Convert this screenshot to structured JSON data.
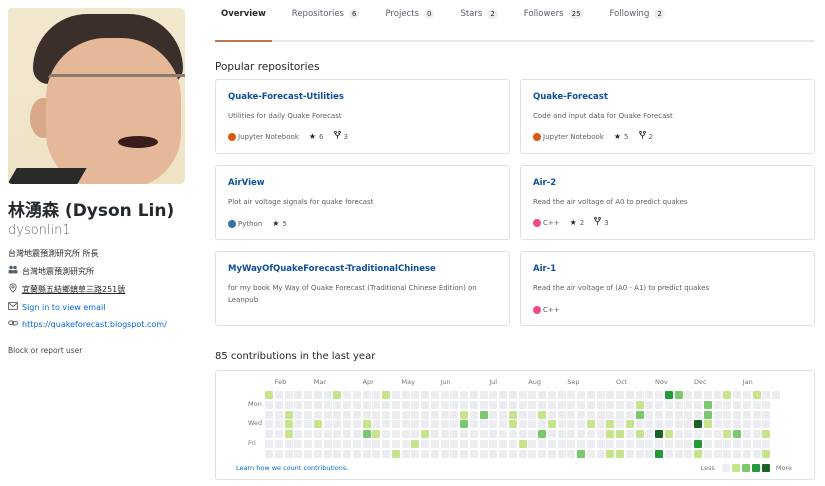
{
  "profile": {
    "full_name": "林湧森 (Dyson Lin)",
    "username": "dysonlin1",
    "bio": "台灣地震預測研究所 所長",
    "organization": "台灣地震預測研究所",
    "location": "宜蘭縣五結鄉鎮草三路251號",
    "email_link": "Sign in to view email",
    "website": "https://quakeforecast.blogspot.com/",
    "block_report": "Block or report user",
    "icons": {
      "organization": "people-icon",
      "location": "location-pin-icon",
      "email": "mail-icon",
      "website": "link-icon"
    }
  },
  "tabs": [
    {
      "label": "Overview",
      "count": null,
      "active": true
    },
    {
      "label": "Repositories",
      "count": "6",
      "active": false
    },
    {
      "label": "Projects",
      "count": "0",
      "active": false
    },
    {
      "label": "Stars",
      "count": "2",
      "active": false
    },
    {
      "label": "Followers",
      "count": "25",
      "active": false
    },
    {
      "label": "Following",
      "count": "2",
      "active": false
    }
  ],
  "popular": {
    "title": "Popular repositories",
    "repos": [
      {
        "name": "Quake-Forecast-Utilities",
        "description": "Utilities for daily Quake Forecast",
        "language": "Jupyter Notebook",
        "lang_color": "#DA5B0B",
        "stars": "6",
        "forks": "3"
      },
      {
        "name": "Quake-Forecast",
        "description": "Code and input data for Quake Forecast",
        "language": "Jupyter Notebook",
        "lang_color": "#DA5B0B",
        "stars": "5",
        "forks": "2"
      },
      {
        "name": "AirView",
        "description": "Plot air voltage signals for quake forecast",
        "language": "Python",
        "lang_color": "#3572A5",
        "stars": "5",
        "forks": null
      },
      {
        "name": "Air-2",
        "description": "Read the air voltage of A0 to predict quakes",
        "language": "C++",
        "lang_color": "#f34b7d",
        "stars": "2",
        "forks": "3"
      },
      {
        "name": "MyWayOfQuakeForecast-TraditionalChinese",
        "description": "for my book My Way of Quake Forecast (Traditional Chinese Edition) on Leanpub",
        "language": null,
        "lang_color": null,
        "stars": null,
        "forks": null
      },
      {
        "name": "Air-1",
        "description": "Read the air voltage of (A0 - A1) to predict quakes",
        "language": "C++",
        "lang_color": "#f34b7d",
        "stars": null,
        "forks": null
      }
    ]
  },
  "contributions": {
    "title": "85 contributions in the last year",
    "learn_link": "Learn how we count contributions.",
    "legend_less": "Less",
    "legend_more": "More",
    "levels": [
      "#ebedf0",
      "#c6e48b",
      "#7bc96f",
      "#239a3b",
      "#196127"
    ],
    "months": [
      {
        "label": "Feb",
        "col": 1
      },
      {
        "label": "Mar",
        "col": 5
      },
      {
        "label": "Apr",
        "col": 10
      },
      {
        "label": "May",
        "col": 14
      },
      {
        "label": "Jun",
        "col": 18
      },
      {
        "label": "Jul",
        "col": 23
      },
      {
        "label": "Aug",
        "col": 27
      },
      {
        "label": "Sep",
        "col": 31
      },
      {
        "label": "Oct",
        "col": 36
      },
      {
        "label": "Nov",
        "col": 40
      },
      {
        "label": "Dec",
        "col": 44
      },
      {
        "label": "Jan",
        "col": 49
      }
    ],
    "day_labels": [
      {
        "label": "Mon",
        "row": 1
      },
      {
        "label": "Wed",
        "row": 3
      },
      {
        "label": "Fri",
        "row": 5
      }
    ],
    "weeks": 53,
    "last_week_days": 1,
    "active_cells": [
      [
        0,
        0,
        1
      ],
      [
        7,
        0,
        1
      ],
      [
        12,
        0,
        1
      ],
      [
        2,
        2,
        1
      ],
      [
        20,
        2,
        1
      ],
      [
        22,
        2,
        2
      ],
      [
        25,
        2,
        1
      ],
      [
        2,
        3,
        1
      ],
      [
        5,
        3,
        1
      ],
      [
        10,
        3,
        1
      ],
      [
        20,
        3,
        2
      ],
      [
        25,
        3,
        1
      ],
      [
        2,
        4,
        1
      ],
      [
        10,
        4,
        2
      ],
      [
        11,
        4,
        1
      ],
      [
        16,
        4,
        1
      ],
      [
        15,
        5,
        1
      ],
      [
        26,
        5,
        1
      ],
      [
        13,
        6,
        1
      ],
      [
        41,
        0,
        3
      ],
      [
        42,
        0,
        2
      ],
      [
        47,
        0,
        1
      ],
      [
        50,
        0,
        1
      ],
      [
        38,
        1,
        1
      ],
      [
        45,
        1,
        2
      ],
      [
        28,
        2,
        1
      ],
      [
        38,
        2,
        2
      ],
      [
        45,
        2,
        2
      ],
      [
        29,
        3,
        1
      ],
      [
        33,
        3,
        1
      ],
      [
        35,
        3,
        1
      ],
      [
        37,
        3,
        1
      ],
      [
        44,
        3,
        4
      ],
      [
        45,
        3,
        1
      ],
      [
        28,
        4,
        2
      ],
      [
        35,
        4,
        1
      ],
      [
        36,
        4,
        1
      ],
      [
        38,
        4,
        1
      ],
      [
        40,
        4,
        4
      ],
      [
        41,
        4,
        1
      ],
      [
        47,
        4,
        1
      ],
      [
        48,
        4,
        2
      ],
      [
        51,
        4,
        1
      ],
      [
        26,
        5,
        1
      ],
      [
        44,
        5,
        3
      ],
      [
        32,
        6,
        2
      ],
      [
        35,
        6,
        1
      ],
      [
        36,
        6,
        1
      ],
      [
        40,
        6,
        3
      ],
      [
        44,
        6,
        1
      ],
      [
        51,
        6,
        1
      ]
    ]
  }
}
